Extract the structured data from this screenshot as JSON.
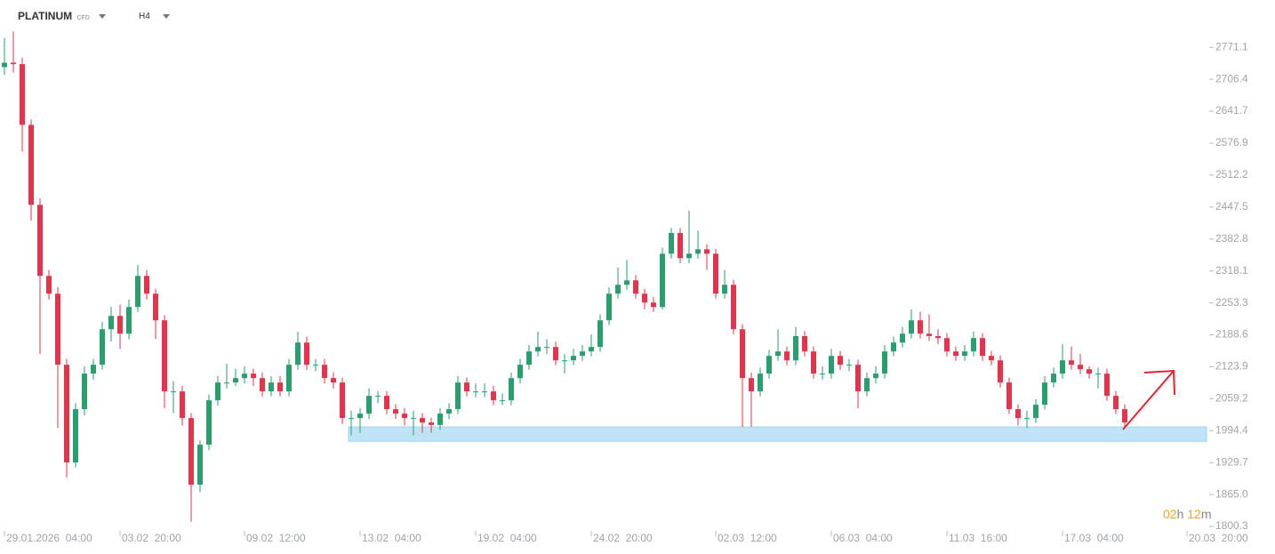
{
  "header": {
    "symbol": "PLATINUM",
    "instrument": "CFD",
    "interval": "H4"
  },
  "countdown": {
    "hours": "02",
    "hours_unit": "h",
    "minutes": "12",
    "minutes_unit": "m"
  },
  "chart_data": {
    "type": "candlestick",
    "up_color": "#2b9e70",
    "down_color": "#e3344e",
    "open": [
      2731,
      2740,
      2737,
      2614,
      2452,
      2308,
      2272,
      2128,
      1930,
      2038,
      2110,
      2128,
      2200,
      2227,
      2191,
      2245,
      2308,
      2272,
      2218,
      2074,
      2074,
      2020,
      1885,
      1966,
      2056,
      2092,
      2092,
      2101,
      2110,
      2101,
      2074,
      2092,
      2074,
      2128,
      2173,
      2128,
      2128,
      2101,
      2092,
      2020,
      2020,
      2029,
      2065,
      2065,
      2038,
      2029,
      2020,
      2020,
      2011,
      2006,
      2029,
      2038,
      2092,
      2074,
      2074,
      2074,
      2056,
      2056,
      2101,
      2128,
      2155,
      2164,
      2164,
      2137,
      2137,
      2146,
      2155,
      2164,
      2218,
      2272,
      2290,
      2299,
      2272,
      2254,
      2245,
      2353,
      2395,
      2344,
      2353,
      2362,
      2353,
      2272,
      2290,
      2200,
      2101,
      2074,
      2110,
      2146,
      2155,
      2137,
      2186,
      2155,
      2110,
      2110,
      2146,
      2128,
      2128,
      2074,
      2101,
      2110,
      2155,
      2173,
      2191,
      2218,
      2191,
      2186,
      2182,
      2155,
      2146,
      2155,
      2182,
      2146,
      2137,
      2092,
      2038,
      2020,
      2020,
      2047,
      2092,
      2110,
      2137,
      2128,
      2119,
      2110,
      2110,
      2065,
      2038
    ],
    "high": [
      2790,
      2803,
      2750,
      2625,
      2465,
      2320,
      2285,
      2140,
      2050,
      2125,
      2140,
      2215,
      2245,
      2250,
      2260,
      2330,
      2320,
      2282,
      2228,
      2095,
      2085,
      2030,
      1975,
      2068,
      2105,
      2130,
      2120,
      2125,
      2120,
      2112,
      2105,
      2105,
      2140,
      2195,
      2185,
      2140,
      2140,
      2112,
      2102,
      2035,
      2040,
      2080,
      2075,
      2075,
      2048,
      2040,
      2035,
      2030,
      2020,
      2040,
      2050,
      2105,
      2102,
      2090,
      2090,
      2085,
      2070,
      2112,
      2140,
      2168,
      2195,
      2180,
      2175,
      2150,
      2160,
      2168,
      2190,
      2230,
      2285,
      2325,
      2340,
      2310,
      2282,
      2265,
      2365,
      2405,
      2405,
      2440,
      2400,
      2372,
      2363,
      2320,
      2300,
      2210,
      2112,
      2122,
      2158,
      2200,
      2165,
      2205,
      2196,
      2165,
      2125,
      2160,
      2156,
      2140,
      2138,
      2112,
      2125,
      2168,
      2185,
      2205,
      2240,
      2235,
      2230,
      2200,
      2192,
      2165,
      2168,
      2195,
      2192,
      2156,
      2147,
      2102,
      2048,
      2035,
      2058,
      2105,
      2122,
      2170,
      2165,
      2150,
      2125,
      2122,
      2120,
      2075,
      2048
    ],
    "low": [
      2715,
      2720,
      2560,
      2420,
      2150,
      2260,
      2000,
      1900,
      1920,
      2025,
      2098,
      2118,
      2175,
      2160,
      2180,
      2235,
      2260,
      2180,
      2040,
      2030,
      2005,
      1810,
      1870,
      1955,
      2045,
      2080,
      2085,
      2090,
      2085,
      2064,
      2064,
      2064,
      2064,
      2118,
      2118,
      2115,
      2090,
      2080,
      2008,
      1985,
      1990,
      2018,
      2050,
      2028,
      2018,
      2005,
      1985,
      1990,
      1990,
      1996,
      2018,
      2028,
      2064,
      2062,
      2062,
      2046,
      2046,
      2046,
      2090,
      2118,
      2145,
      2150,
      2127,
      2110,
      2127,
      2136,
      2145,
      2154,
      2208,
      2262,
      2280,
      2262,
      2240,
      2235,
      2240,
      2343,
      2334,
      2334,
      2343,
      2320,
      2262,
      2262,
      2190,
      2002,
      2002,
      2064,
      2100,
      2136,
      2127,
      2127,
      2145,
      2100,
      2098,
      2100,
      2118,
      2115,
      2040,
      2064,
      2090,
      2100,
      2145,
      2163,
      2181,
      2181,
      2176,
      2170,
      2145,
      2136,
      2136,
      2145,
      2136,
      2127,
      2082,
      2028,
      2005,
      2000,
      2010,
      2037,
      2082,
      2100,
      2118,
      2109,
      2100,
      2080,
      2055,
      2028,
      2001
    ],
    "close": [
      2740,
      2737,
      2614,
      2452,
      2308,
      2272,
      2128,
      1930,
      2038,
      2110,
      2128,
      2200,
      2227,
      2191,
      2245,
      2308,
      2272,
      2218,
      2074,
      2074,
      2020,
      1885,
      1966,
      2056,
      2092,
      2092,
      2101,
      2110,
      2101,
      2074,
      2092,
      2074,
      2128,
      2173,
      2128,
      2128,
      2101,
      2092,
      2020,
      2020,
      2029,
      2065,
      2065,
      2038,
      2029,
      2020,
      2020,
      2011,
      2006,
      2029,
      2038,
      2092,
      2074,
      2074,
      2074,
      2056,
      2056,
      2101,
      2128,
      2155,
      2164,
      2164,
      2137,
      2137,
      2146,
      2155,
      2164,
      2218,
      2272,
      2290,
      2299,
      2272,
      2254,
      2245,
      2353,
      2395,
      2344,
      2353,
      2362,
      2353,
      2272,
      2290,
      2200,
      2101,
      2074,
      2110,
      2146,
      2155,
      2137,
      2186,
      2155,
      2110,
      2110,
      2146,
      2128,
      2128,
      2074,
      2101,
      2110,
      2155,
      2173,
      2191,
      2218,
      2191,
      2186,
      2182,
      2155,
      2146,
      2155,
      2182,
      2146,
      2137,
      2092,
      2038,
      2020,
      2020,
      2047,
      2092,
      2110,
      2137,
      2128,
      2119,
      2110,
      2110,
      2065,
      2038,
      2011
    ],
    "xticks": [
      {
        "value": 0,
        "label": "29.01.2026  04:00"
      },
      {
        "value": 13,
        "label": "03.02  20:00"
      },
      {
        "value": 27,
        "label": "09.02  12:00"
      },
      {
        "value": 40,
        "label": "13.02  04:00"
      },
      {
        "value": 53,
        "label": "19.02  04:00"
      },
      {
        "value": 66,
        "label": "24.02  20:00"
      },
      {
        "value": 80,
        "label": "02.03  12:00"
      },
      {
        "value": 93,
        "label": "06.03  04:00"
      },
      {
        "value": 106,
        "label": "11.03  16:00"
      },
      {
        "value": 119,
        "label": "17.03  04:00"
      },
      {
        "value": 133,
        "label": "20.03  20:00"
      }
    ],
    "ylim": [
      1786,
      2867
    ],
    "yticks": [
      2771.1,
      2706.4,
      2641.7,
      2576.9,
      2512.2,
      2447.5,
      2382.8,
      2318.1,
      2253.3,
      2188.6,
      2123.9,
      2059.2,
      1994.4,
      1929.7,
      {
        "value": 1865,
        "label": "1865.0"
      },
      1800.3
    ],
    "zone": {
      "low": 1973,
      "high": 2002,
      "start": 39,
      "color": "#bfe4f8"
    }
  }
}
